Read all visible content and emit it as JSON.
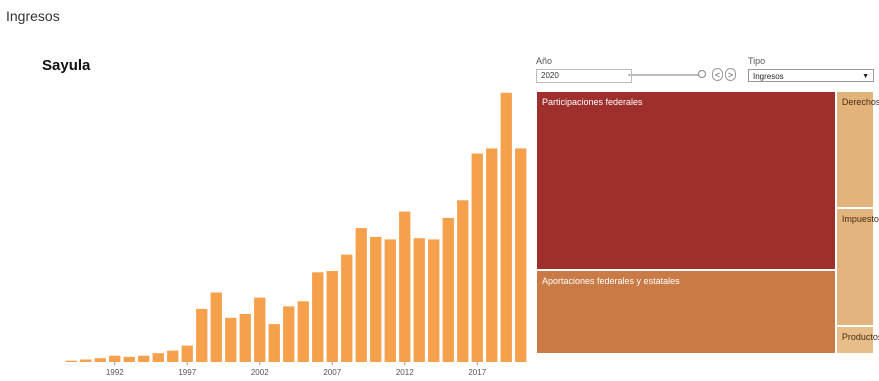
{
  "page": {
    "heading": "Ingresos",
    "municipality": "Sayula"
  },
  "controls": {
    "year_label": "Año",
    "year_value": "2020",
    "year_slider_fraction": 1.0,
    "prev_label": "<",
    "next_label": ">",
    "type_label": "Tipo",
    "type_value": "Ingresos"
  },
  "colors": {
    "bar": "#f5a04a"
  },
  "chart_data": [
    {
      "type": "bar",
      "title": "",
      "xlabel": "",
      "ylabel": "",
      "x": [
        1989,
        1990,
        1991,
        1992,
        1993,
        1994,
        1995,
        1996,
        1997,
        1998,
        1999,
        2000,
        2001,
        2002,
        2003,
        2004,
        2005,
        2006,
        2007,
        2008,
        2009,
        2010,
        2011,
        2012,
        2013,
        2014,
        2015,
        2016,
        2017,
        2018,
        2019,
        2020
      ],
      "values": [
        1,
        2,
        3,
        5,
        4,
        5,
        7,
        9,
        13,
        42,
        55,
        35,
        38,
        51,
        30,
        44,
        48,
        71,
        72,
        85,
        106,
        99,
        97,
        119,
        98,
        97,
        114,
        128,
        165,
        169,
        213,
        169
      ],
      "xticks": [
        1992,
        1997,
        2002,
        2007,
        2012,
        2017
      ],
      "ylim": [
        0,
        220
      ],
      "yaxis_shown": false,
      "grid": false
    },
    {
      "type": "treemap",
      "items": [
        {
          "label": "Participaciones federales",
          "value": 60,
          "color": "#9e2f2c"
        },
        {
          "label": "Aportaciones federales y estatales",
          "value": 28,
          "color": "#c97a45"
        },
        {
          "label": "Derechos",
          "value": 5,
          "color": "#e2b47c"
        },
        {
          "label": "Impuestos",
          "value": 5,
          "color": "#e3b57e"
        },
        {
          "label": "Productos",
          "value": 1.2,
          "color": "#e7bd8a"
        }
      ]
    }
  ]
}
